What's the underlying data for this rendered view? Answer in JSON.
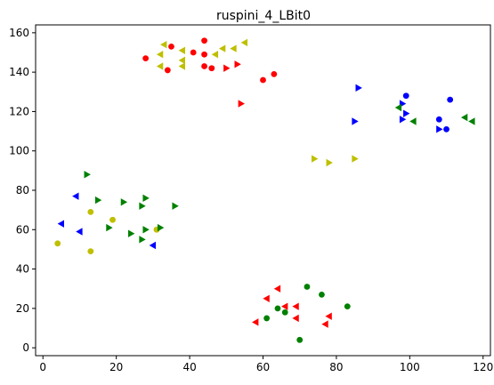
{
  "chart_data": {
    "type": "scatter",
    "title": "ruspini_4_LBit0",
    "xlabel": "",
    "ylabel": "",
    "xlim": [
      -2,
      122
    ],
    "ylim": [
      -4,
      164
    ],
    "xticks": [
      0,
      20,
      40,
      60,
      80,
      100,
      120
    ],
    "yticks": [
      0,
      20,
      40,
      60,
      80,
      100,
      120,
      140,
      160
    ],
    "grid": false,
    "colors": {
      "red": "#ff0000",
      "green": "#008000",
      "blue": "#0000ff",
      "yellow": "#bfbf00"
    },
    "series": [
      {
        "color": "red",
        "marker": "circle",
        "points": [
          [
            28,
            147
          ],
          [
            35,
            153
          ],
          [
            34,
            141
          ],
          [
            41,
            150
          ],
          [
            44,
            156
          ],
          [
            44,
            149
          ],
          [
            44,
            143
          ],
          [
            46,
            142
          ],
          [
            60,
            136
          ],
          [
            63,
            139
          ]
        ]
      },
      {
        "color": "red",
        "marker": "triangle-right",
        "points": [
          [
            50,
            142
          ],
          [
            53,
            144
          ],
          [
            54,
            124
          ]
        ]
      },
      {
        "color": "red",
        "marker": "triangle-left",
        "points": [
          [
            58,
            13
          ],
          [
            61,
            25
          ],
          [
            64,
            30
          ],
          [
            66,
            21
          ],
          [
            69,
            21
          ],
          [
            69,
            15
          ],
          [
            77,
            12
          ],
          [
            78,
            16
          ]
        ]
      },
      {
        "color": "yellow",
        "marker": "triangle-left",
        "points": [
          [
            32,
            143
          ],
          [
            32,
            149
          ],
          [
            33,
            154
          ],
          [
            38,
            151
          ],
          [
            38,
            146
          ],
          [
            38,
            143
          ],
          [
            47,
            149
          ],
          [
            49,
            152
          ],
          [
            52,
            152
          ],
          [
            55,
            155
          ]
        ]
      },
      {
        "color": "yellow",
        "marker": "triangle-right",
        "points": [
          [
            74,
            96
          ],
          [
            78,
            94
          ],
          [
            85,
            96
          ]
        ]
      },
      {
        "color": "yellow",
        "marker": "circle",
        "points": [
          [
            4,
            53
          ],
          [
            13,
            69
          ],
          [
            13,
            49
          ],
          [
            19,
            65
          ],
          [
            31,
            60
          ]
        ]
      },
      {
        "color": "blue",
        "marker": "circle",
        "points": [
          [
            99,
            128
          ],
          [
            108,
            116
          ],
          [
            110,
            111
          ],
          [
            111,
            126
          ]
        ]
      },
      {
        "color": "blue",
        "marker": "triangle-right",
        "points": [
          [
            86,
            132
          ],
          [
            85,
            115
          ],
          [
            98,
            124
          ],
          [
            98,
            116
          ],
          [
            99,
            119
          ],
          [
            108,
            111
          ]
        ]
      },
      {
        "color": "blue",
        "marker": "triangle-left",
        "points": [
          [
            5,
            63
          ],
          [
            9,
            77
          ],
          [
            10,
            59
          ],
          [
            30,
            52
          ]
        ]
      },
      {
        "color": "green",
        "marker": "triangle-left",
        "points": [
          [
            97,
            122
          ],
          [
            101,
            115
          ],
          [
            115,
            117
          ],
          [
            117,
            115
          ]
        ]
      },
      {
        "color": "green",
        "marker": "triangle-right",
        "points": [
          [
            12,
            88
          ],
          [
            15,
            75
          ],
          [
            18,
            61
          ],
          [
            22,
            74
          ],
          [
            24,
            58
          ],
          [
            27,
            72
          ],
          [
            27,
            55
          ],
          [
            28,
            76
          ],
          [
            28,
            60
          ],
          [
            32,
            61
          ],
          [
            36,
            72
          ]
        ]
      },
      {
        "color": "green",
        "marker": "circle",
        "points": [
          [
            61,
            15
          ],
          [
            64,
            20
          ],
          [
            66,
            18
          ],
          [
            70,
            4
          ],
          [
            72,
            31
          ],
          [
            76,
            27
          ],
          [
            83,
            21
          ]
        ]
      }
    ]
  }
}
